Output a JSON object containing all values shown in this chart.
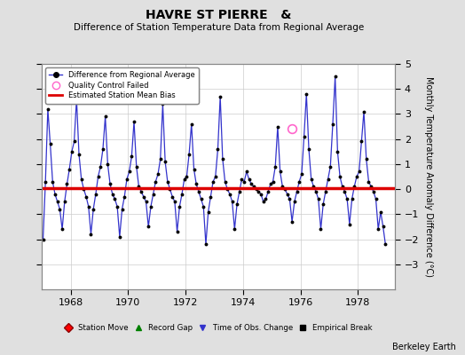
{
  "title": "HAVRE ST PIERRE   &",
  "subtitle": "Difference of Station Temperature Data from Regional Average",
  "ylabel": "Monthly Temperature Anomaly Difference (°C)",
  "xlabel_ticks": [
    1968,
    1970,
    1972,
    1974,
    1976,
    1978
  ],
  "ylim": [
    -4,
    5
  ],
  "yticks": [
    -3,
    -2,
    -1,
    0,
    1,
    2,
    3,
    4,
    5
  ],
  "bias_value": 0.05,
  "background_color": "#e0e0e0",
  "plot_bg_color": "#ffffff",
  "line_color": "#3333cc",
  "bias_color": "#dd0000",
  "marker_color": "#000000",
  "qc_color": "#ff66cc",
  "watermark": "Berkeley Earth",
  "x_data": [
    1967.042,
    1967.125,
    1967.208,
    1967.292,
    1967.375,
    1967.458,
    1967.542,
    1967.625,
    1967.708,
    1967.792,
    1967.875,
    1967.958,
    1968.042,
    1968.125,
    1968.208,
    1968.292,
    1968.375,
    1968.458,
    1968.542,
    1968.625,
    1968.708,
    1968.792,
    1968.875,
    1968.958,
    1969.042,
    1969.125,
    1969.208,
    1969.292,
    1969.375,
    1969.458,
    1969.542,
    1969.625,
    1969.708,
    1969.792,
    1969.875,
    1969.958,
    1970.042,
    1970.125,
    1970.208,
    1970.292,
    1970.375,
    1970.458,
    1970.542,
    1970.625,
    1970.708,
    1970.792,
    1970.875,
    1970.958,
    1971.042,
    1971.125,
    1971.208,
    1971.292,
    1971.375,
    1971.458,
    1971.542,
    1971.625,
    1971.708,
    1971.792,
    1971.875,
    1971.958,
    1972.042,
    1972.125,
    1972.208,
    1972.292,
    1972.375,
    1972.458,
    1972.542,
    1972.625,
    1972.708,
    1972.792,
    1972.875,
    1972.958,
    1973.042,
    1973.125,
    1973.208,
    1973.292,
    1973.375,
    1973.458,
    1973.542,
    1973.625,
    1973.708,
    1973.792,
    1973.875,
    1973.958,
    1974.042,
    1974.125,
    1974.208,
    1974.292,
    1974.375,
    1974.458,
    1974.542,
    1974.625,
    1974.708,
    1974.792,
    1974.875,
    1974.958,
    1975.042,
    1975.125,
    1975.208,
    1975.292,
    1975.375,
    1975.458,
    1975.542,
    1975.625,
    1975.708,
    1975.792,
    1975.875,
    1975.958,
    1976.042,
    1976.125,
    1976.208,
    1976.292,
    1976.375,
    1976.458,
    1976.542,
    1976.625,
    1976.708,
    1976.792,
    1976.875,
    1976.958,
    1977.042,
    1977.125,
    1977.208,
    1977.292,
    1977.375,
    1977.458,
    1977.542,
    1977.625,
    1977.708,
    1977.792,
    1977.875,
    1977.958,
    1978.042,
    1978.125,
    1978.208,
    1978.292,
    1978.375,
    1978.458,
    1978.542,
    1978.625,
    1978.708,
    1978.792,
    1978.875,
    1978.958
  ],
  "y_data": [
    -2.0,
    0.3,
    3.2,
    1.8,
    0.3,
    -0.2,
    -0.5,
    -0.8,
    -1.6,
    -0.5,
    0.2,
    0.8,
    1.5,
    1.9,
    3.6,
    1.4,
    0.4,
    0.0,
    -0.3,
    -0.7,
    -1.8,
    -0.8,
    -0.2,
    0.5,
    0.9,
    1.6,
    2.9,
    1.0,
    0.2,
    -0.2,
    -0.4,
    -0.7,
    -1.9,
    -0.8,
    -0.3,
    0.4,
    0.7,
    1.3,
    2.7,
    0.9,
    0.1,
    -0.1,
    -0.3,
    -0.5,
    -1.5,
    -0.7,
    -0.2,
    0.3,
    0.6,
    1.2,
    3.4,
    1.1,
    0.3,
    0.0,
    -0.3,
    -0.5,
    -1.7,
    -0.7,
    -0.2,
    0.4,
    0.5,
    1.4,
    2.6,
    0.8,
    0.2,
    -0.1,
    -0.4,
    -0.7,
    -2.2,
    -0.9,
    -0.3,
    0.3,
    0.5,
    1.6,
    3.7,
    1.2,
    0.3,
    0.0,
    -0.2,
    -0.5,
    -1.6,
    -0.6,
    -0.1,
    0.4,
    0.3,
    0.7,
    0.4,
    0.2,
    0.1,
    0.0,
    -0.1,
    -0.2,
    -0.5,
    -0.4,
    -0.1,
    0.2,
    0.3,
    0.9,
    2.5,
    0.7,
    0.1,
    0.0,
    -0.2,
    -0.4,
    -1.3,
    -0.5,
    -0.1,
    0.3,
    0.6,
    2.1,
    3.8,
    1.6,
    0.4,
    0.1,
    -0.1,
    -0.4,
    -1.6,
    -0.6,
    -0.1,
    0.4,
    0.9,
    2.6,
    4.5,
    1.5,
    0.5,
    0.1,
    -0.1,
    -0.4,
    -1.4,
    -0.4,
    0.1,
    0.5,
    0.7,
    1.9,
    3.1,
    1.2,
    0.3,
    0.1,
    -0.1,
    -0.4,
    -1.6,
    -0.9,
    -1.5,
    -2.2
  ],
  "qc_failed_x": [
    1975.708
  ],
  "qc_failed_y": [
    2.4
  ],
  "xlim": [
    1967.0,
    1979.3
  ]
}
